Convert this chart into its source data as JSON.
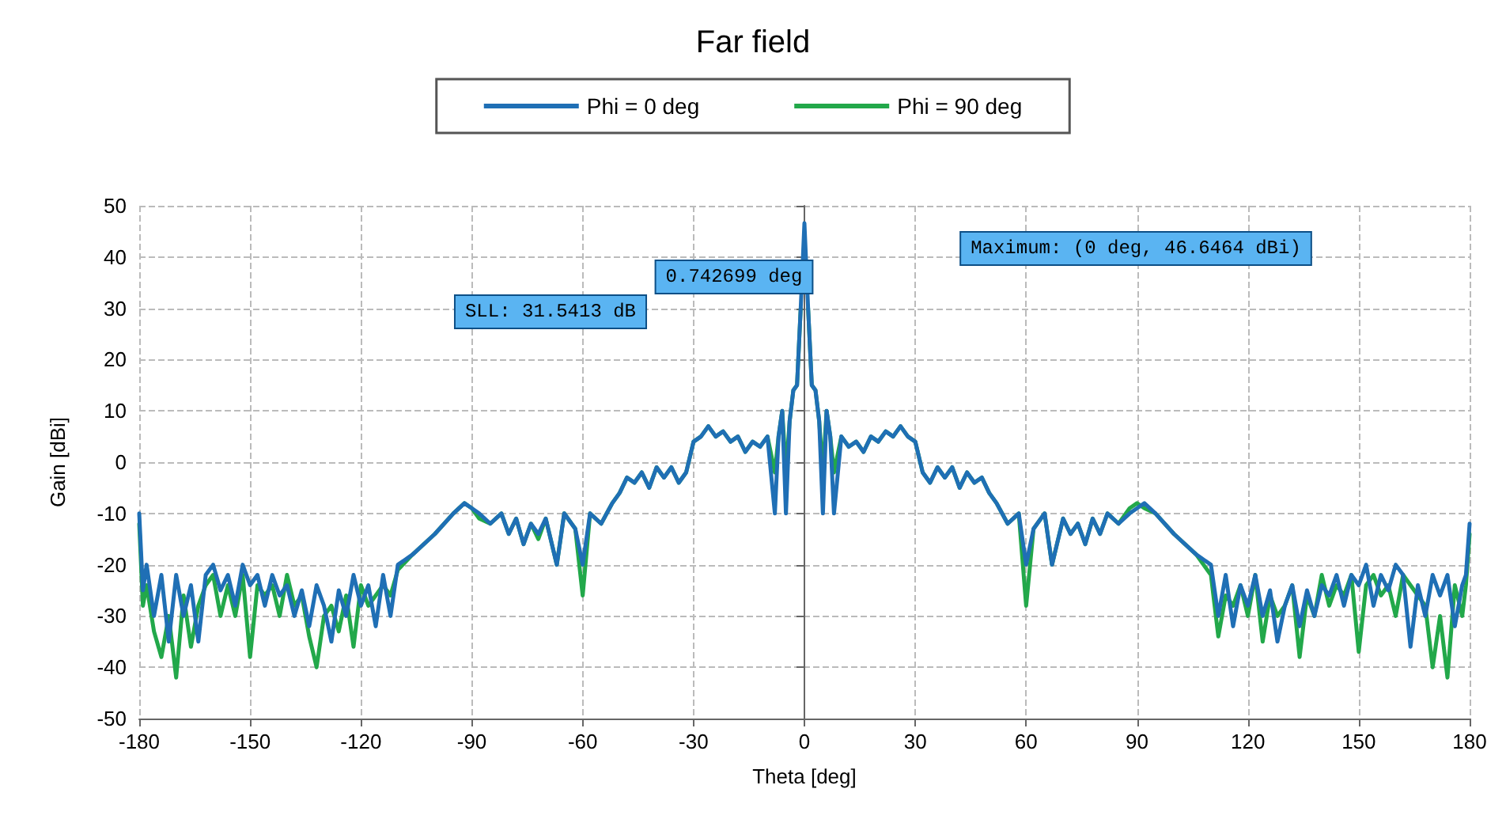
{
  "chart_data": {
    "type": "line",
    "title": "Far field",
    "xlabel": "Theta [deg]",
    "ylabel": "Gain [dBi]",
    "xlim": [
      -180,
      180
    ],
    "xticks": [
      -180,
      -150,
      -120,
      -90,
      -60,
      -30,
      0,
      30,
      60,
      90,
      120,
      150,
      180
    ],
    "ylim": [
      -50,
      50
    ],
    "yticks": [
      -50,
      -40,
      -30,
      -20,
      -10,
      0,
      10,
      20,
      30,
      40,
      50
    ],
    "grid": true,
    "legend": "top",
    "marker": "none",
    "line_style": "solid",
    "annotations": [
      "SLL: 31.5413 dB",
      "0.742699 deg",
      "Maximum: (0 deg, 46.6464 dBi)"
    ],
    "series": [
      {
        "name": "Phi = 0 deg",
        "color": "#1f6fb5",
        "x": [
          -180,
          -179,
          -178,
          -176,
          -174,
          -172,
          -170,
          -168,
          -166,
          -164,
          -162,
          -160,
          -158,
          -156,
          -154,
          -152,
          -150,
          -148,
          -146,
          -144,
          -142,
          -140,
          -138,
          -136,
          -134,
          -132,
          -130,
          -128,
          -126,
          -124,
          -122,
          -120,
          -118,
          -116,
          -114,
          -112,
          -110,
          -106,
          -100,
          -95,
          -92,
          -90,
          -88,
          -85,
          -82,
          -80,
          -78,
          -76,
          -74,
          -72,
          -70,
          -67,
          -65,
          -62,
          -60,
          -58,
          -55,
          -52,
          -50,
          -48,
          -46,
          -44,
          -42,
          -40,
          -38,
          -36,
          -34,
          -32,
          -30,
          -28,
          -26,
          -24,
          -22,
          -20,
          -18,
          -16,
          -14,
          -12,
          -10,
          -8,
          -7,
          -6,
          -5,
          -4,
          -3,
          -2,
          -1,
          0,
          1,
          2,
          3,
          4,
          5,
          6,
          7,
          8,
          10,
          12,
          14,
          16,
          18,
          20,
          22,
          24,
          26,
          28,
          30,
          32,
          34,
          36,
          38,
          40,
          42,
          44,
          46,
          48,
          50,
          52,
          55,
          58,
          60,
          62,
          65,
          67,
          70,
          72,
          74,
          76,
          78,
          80,
          82,
          85,
          88,
          90,
          92,
          95,
          100,
          106,
          110,
          112,
          114,
          116,
          118,
          120,
          122,
          124,
          126,
          128,
          130,
          132,
          134,
          136,
          138,
          140,
          142,
          144,
          146,
          148,
          150,
          152,
          154,
          156,
          158,
          160,
          162,
          164,
          166,
          168,
          170,
          172,
          174,
          176,
          178,
          179,
          180
        ],
        "values": [
          -10,
          -25,
          -20,
          -30,
          -22,
          -35,
          -22,
          -30,
          -24,
          -35,
          -22,
          -20,
          -25,
          -22,
          -28,
          -20,
          -24,
          -22,
          -28,
          -22,
          -26,
          -24,
          -30,
          -25,
          -32,
          -24,
          -28,
          -35,
          -25,
          -30,
          -22,
          -28,
          -24,
          -32,
          -22,
          -30,
          -20,
          -18,
          -14,
          -10,
          -8,
          -9,
          -10,
          -12,
          -10,
          -14,
          -11,
          -16,
          -12,
          -14,
          -11,
          -20,
          -10,
          -13,
          -20,
          -10,
          -12,
          -8,
          -6,
          -3,
          -4,
          -2,
          -5,
          -1,
          -3,
          -1,
          -4,
          -2,
          4,
          5,
          7,
          5,
          6,
          4,
          5,
          2,
          4,
          3,
          5,
          -10,
          5,
          10,
          -10,
          8,
          14,
          15,
          30,
          46.6,
          30,
          15,
          14,
          8,
          -10,
          10,
          5,
          -10,
          5,
          3,
          4,
          2,
          5,
          4,
          6,
          5,
          7,
          5,
          4,
          -2,
          -4,
          -1,
          -3,
          -1,
          -5,
          -2,
          -4,
          -3,
          -6,
          -8,
          -12,
          -10,
          -20,
          -13,
          -10,
          -20,
          -11,
          -14,
          -12,
          -16,
          -11,
          -14,
          -10,
          -12,
          -10,
          -9,
          -8,
          -10,
          -14,
          -18,
          -20,
          -30,
          -22,
          -32,
          -24,
          -28,
          -22,
          -30,
          -25,
          -35,
          -28,
          -24,
          -32,
          -25,
          -30,
          -24,
          -26,
          -22,
          -28,
          -22,
          -24,
          -20,
          -28,
          -22,
          -25,
          -20,
          -22,
          -36,
          -24,
          -30,
          -22,
          -26,
          -22,
          -32,
          -24,
          -22,
          -12
        ]
      },
      {
        "name": "Phi = 90 deg",
        "color": "#22a84a",
        "x": [
          -180,
          -179,
          -178,
          -176,
          -174,
          -172,
          -170,
          -168,
          -166,
          -164,
          -162,
          -160,
          -158,
          -156,
          -154,
          -152,
          -150,
          -148,
          -146,
          -144,
          -142,
          -140,
          -138,
          -136,
          -134,
          -132,
          -130,
          -128,
          -126,
          -124,
          -122,
          -120,
          -118,
          -116,
          -114,
          -112,
          -110,
          -106,
          -100,
          -95,
          -92,
          -90,
          -88,
          -85,
          -82,
          -80,
          -78,
          -76,
          -74,
          -72,
          -70,
          -67,
          -65,
          -62,
          -60,
          -58,
          -55,
          -52,
          -50,
          -48,
          -46,
          -44,
          -42,
          -40,
          -38,
          -36,
          -34,
          -32,
          -30,
          -28,
          -26,
          -24,
          -22,
          -20,
          -18,
          -16,
          -14,
          -12,
          -10,
          -8,
          -7,
          -6,
          -5,
          -4,
          -3,
          -2,
          -1,
          0,
          1,
          2,
          3,
          4,
          5,
          6,
          7,
          8,
          10,
          12,
          14,
          16,
          18,
          20,
          22,
          24,
          26,
          28,
          30,
          32,
          34,
          36,
          38,
          40,
          42,
          44,
          46,
          48,
          50,
          52,
          55,
          58,
          60,
          62,
          65,
          67,
          70,
          72,
          74,
          76,
          78,
          80,
          82,
          85,
          88,
          90,
          92,
          95,
          100,
          106,
          110,
          112,
          114,
          116,
          118,
          120,
          122,
          124,
          126,
          128,
          130,
          132,
          134,
          136,
          138,
          140,
          142,
          144,
          146,
          148,
          150,
          152,
          154,
          156,
          158,
          160,
          162,
          164,
          166,
          168,
          170,
          172,
          174,
          176,
          178,
          179,
          180
        ],
        "values": [
          -12,
          -28,
          -24,
          -33,
          -38,
          -30,
          -42,
          -26,
          -36,
          -28,
          -24,
          -22,
          -30,
          -24,
          -30,
          -22,
          -38,
          -24,
          -26,
          -24,
          -30,
          -22,
          -28,
          -26,
          -34,
          -40,
          -30,
          -28,
          -33,
          -26,
          -36,
          -24,
          -28,
          -26,
          -24,
          -26,
          -21,
          -18,
          -14,
          -10,
          -8,
          -9,
          -11,
          -12,
          -10,
          -14,
          -11,
          -16,
          -12,
          -15,
          -11,
          -20,
          -10,
          -13,
          -26,
          -10,
          -12,
          -8,
          -6,
          -3,
          -4,
          -2,
          -5,
          -1,
          -3,
          -1,
          -4,
          -2,
          4,
          5,
          7,
          5,
          6,
          4,
          5,
          2,
          4,
          3,
          5,
          -2,
          5,
          10,
          -2,
          8,
          14,
          15,
          30,
          null,
          30,
          15,
          14,
          8,
          -2,
          10,
          5,
          -2,
          5,
          3,
          4,
          2,
          5,
          4,
          6,
          5,
          7,
          5,
          4,
          -2,
          -4,
          -1,
          -3,
          -1,
          -5,
          -2,
          -4,
          -3,
          -6,
          -8,
          -12,
          -10,
          -28,
          -13,
          -10,
          -20,
          -11,
          -14,
          -12,
          -16,
          -11,
          -14,
          -10,
          -12,
          -9,
          -8,
          -9,
          -10,
          -14,
          -18,
          -22,
          -34,
          -26,
          -28,
          -24,
          -30,
          -22,
          -35,
          -26,
          -30,
          -28,
          -24,
          -38,
          -26,
          -30,
          -22,
          -28,
          -24,
          -26,
          -22,
          -37,
          -24,
          -22,
          -26,
          -24,
          -30,
          -22,
          -24,
          -26,
          -28,
          -40,
          -30,
          -42,
          -24,
          -30,
          -24,
          -14
        ]
      }
    ]
  }
}
